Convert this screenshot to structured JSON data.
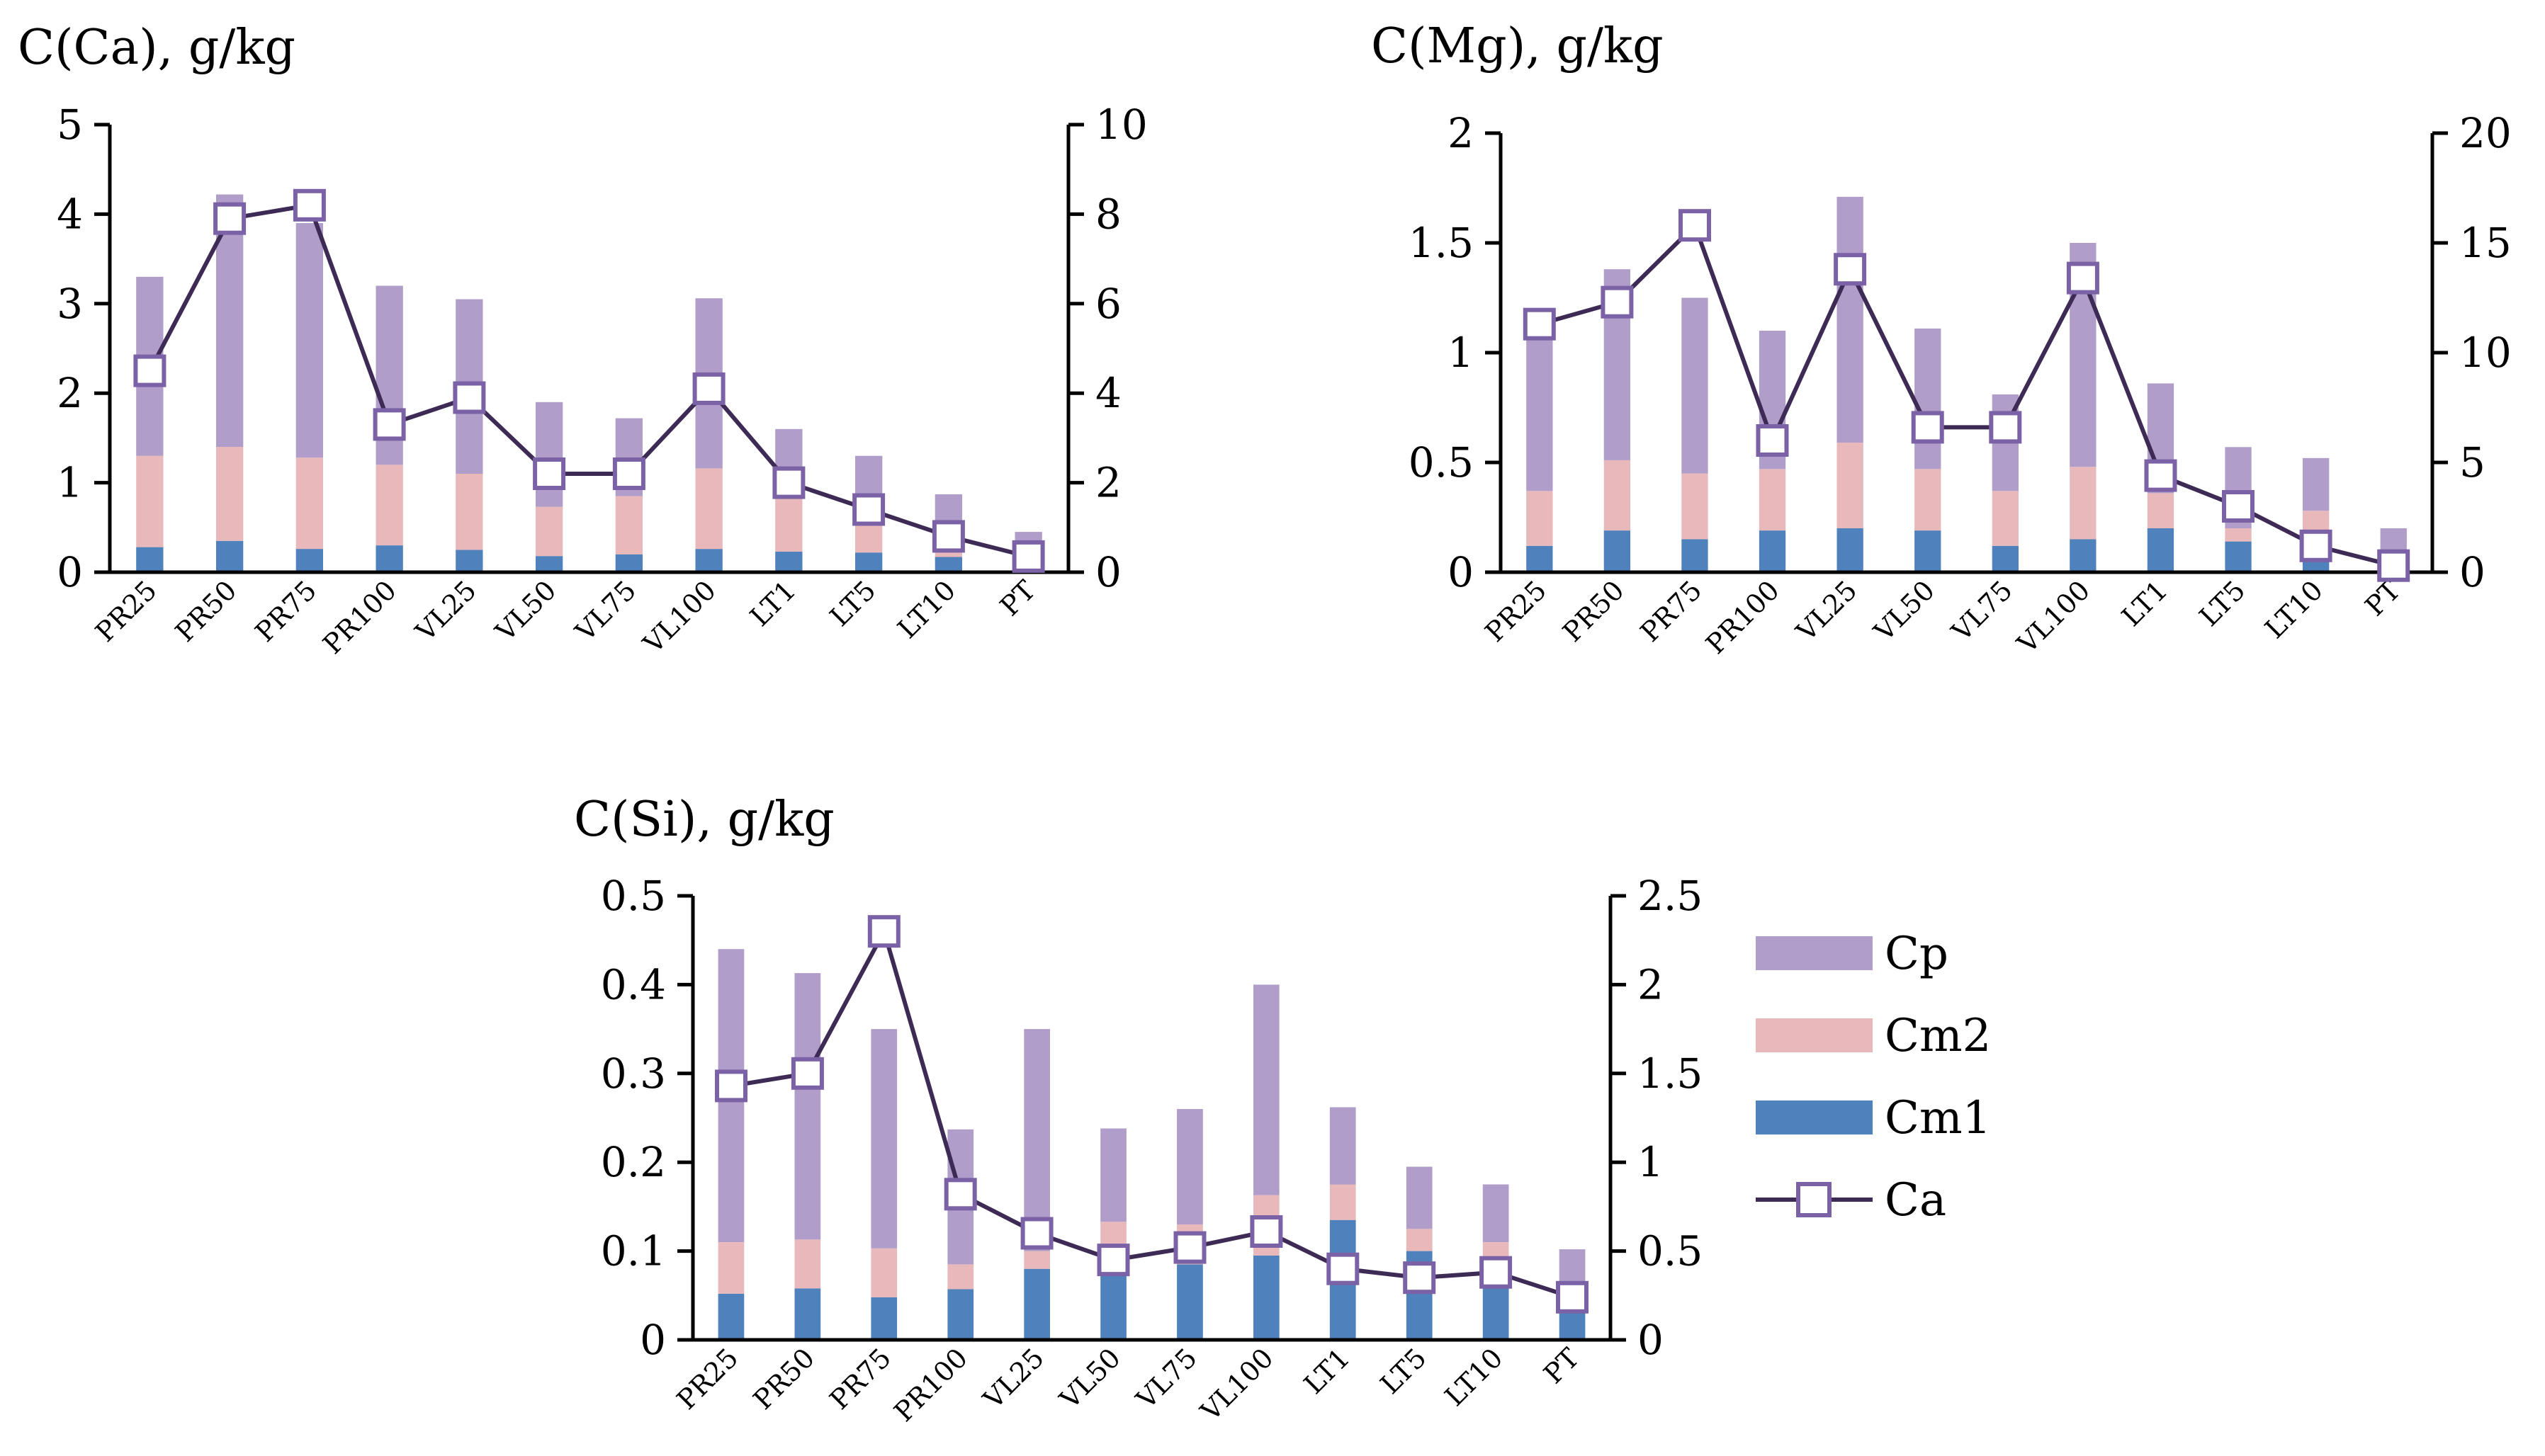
{
  "colors": {
    "Cp": "#b09dc9",
    "Cm2": "#e8b8ba",
    "Cm1": "#4f81bd",
    "line": "#3d2b56",
    "marker_stroke": "#7b62a6",
    "axis": "#000000"
  },
  "legend": {
    "items": [
      {
        "key": "Cp",
        "label": "Cp"
      },
      {
        "key": "Cm2",
        "label": "Cm2"
      },
      {
        "key": "Cm1",
        "label": "Cm1"
      },
      {
        "key": "Ca",
        "label": "Ca"
      }
    ]
  },
  "chart_data": [
    {
      "type": "bar",
      "title": "C(Ca), g/kg",
      "stacked": true,
      "categories": [
        "PR25",
        "PR50",
        "PR75",
        "PR100",
        "VL25",
        "VL50",
        "VL75",
        "VL100",
        "LT1",
        "LT5",
        "LT10",
        "PT"
      ],
      "ylim": [
        0,
        5
      ],
      "yticks": [
        "0",
        "1",
        "2",
        "3",
        "4",
        "5"
      ],
      "y2lim": [
        0,
        10
      ],
      "y2ticks": [
        "0",
        "2",
        "4",
        "6",
        "8",
        "10"
      ],
      "series": [
        {
          "name": "Cm1",
          "values": [
            0.28,
            0.35,
            0.26,
            0.3,
            0.25,
            0.18,
            0.2,
            0.26,
            0.23,
            0.22,
            0.17,
            0.06
          ]
        },
        {
          "name": "Cm2",
          "values": [
            1.02,
            1.05,
            1.02,
            0.9,
            0.85,
            0.55,
            0.65,
            0.9,
            0.6,
            0.35,
            0.2,
            0.08
          ]
        },
        {
          "name": "Cp",
          "values": [
            2.0,
            2.82,
            2.62,
            2.0,
            1.95,
            1.17,
            0.87,
            1.9,
            0.77,
            0.73,
            0.5,
            0.31
          ]
        },
        {
          "name": "Ca",
          "type": "line",
          "axis": "secondary",
          "values": [
            4.5,
            7.9,
            8.2,
            3.3,
            3.9,
            2.2,
            2.2,
            4.1,
            2.0,
            1.4,
            0.8,
            0.35
          ]
        }
      ]
    },
    {
      "type": "bar",
      "title": "C(Mg), g/kg",
      "stacked": true,
      "categories": [
        "PR25",
        "PR50",
        "PR75",
        "PR100",
        "VL25",
        "VL50",
        "VL75",
        "VL100",
        "LT1",
        "LT5",
        "LT10",
        "PT"
      ],
      "ylim": [
        0,
        2
      ],
      "yticks": [
        "0",
        "0.5",
        "1",
        "1.5",
        "2"
      ],
      "y2lim": [
        0,
        20
      ],
      "y2ticks": [
        "0",
        "5",
        "10",
        "15",
        "20"
      ],
      "series": [
        {
          "name": "Cm1",
          "values": [
            0.12,
            0.19,
            0.15,
            0.19,
            0.2,
            0.19,
            0.12,
            0.15,
            0.2,
            0.14,
            0.05,
            0.02
          ]
        },
        {
          "name": "Cm2",
          "values": [
            0.25,
            0.32,
            0.3,
            0.28,
            0.39,
            0.28,
            0.25,
            0.33,
            0.16,
            0.06,
            0.23,
            0.03
          ]
        },
        {
          "name": "Cp",
          "values": [
            0.7,
            0.87,
            0.8,
            0.63,
            1.12,
            0.64,
            0.44,
            1.02,
            0.5,
            0.37,
            0.24,
            0.15
          ]
        },
        {
          "name": "Ca",
          "type": "line",
          "axis": "secondary",
          "values": [
            11.3,
            12.3,
            15.8,
            6.0,
            13.8,
            6.6,
            6.6,
            13.4,
            4.4,
            3.0,
            1.2,
            0.3
          ]
        }
      ]
    },
    {
      "type": "bar",
      "title": "C(Si), g/kg",
      "stacked": true,
      "categories": [
        "PR25",
        "PR50",
        "PR75",
        "PR100",
        "VL25",
        "VL50",
        "VL75",
        "VL100",
        "LT1",
        "LT5",
        "LT10",
        "PT"
      ],
      "ylim": [
        0,
        0.5
      ],
      "yticks": [
        "0",
        "0.1",
        "0.2",
        "0.3",
        "0.4",
        "0.5"
      ],
      "y2lim": [
        0,
        2.5
      ],
      "y2ticks": [
        "0",
        "0.5",
        "1",
        "1.5",
        "2",
        "2.5"
      ],
      "series": [
        {
          "name": "Cm1",
          "values": [
            0.052,
            0.058,
            0.048,
            0.057,
            0.08,
            0.078,
            0.085,
            0.095,
            0.135,
            0.1,
            0.06,
            0.03
          ]
        },
        {
          "name": "Cm2",
          "values": [
            0.058,
            0.055,
            0.055,
            0.028,
            0.02,
            0.055,
            0.045,
            0.068,
            0.04,
            0.025,
            0.05,
            0.015
          ]
        },
        {
          "name": "Cp",
          "values": [
            0.33,
            0.3,
            0.247,
            0.152,
            0.25,
            0.105,
            0.13,
            0.237,
            0.087,
            0.07,
            0.065,
            0.057
          ]
        },
        {
          "name": "Ca",
          "type": "line",
          "axis": "secondary",
          "values": [
            1.43,
            1.5,
            2.3,
            0.82,
            0.6,
            0.45,
            0.52,
            0.61,
            0.4,
            0.35,
            0.38,
            0.24
          ]
        }
      ]
    }
  ]
}
